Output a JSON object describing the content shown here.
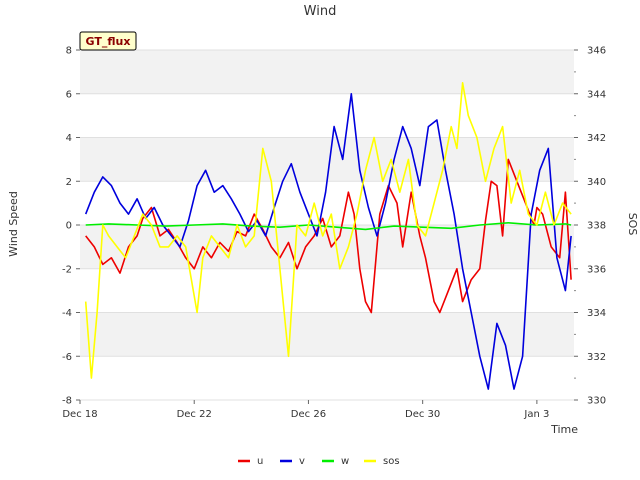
{
  "chart_data": {
    "type": "line",
    "title": "Wind",
    "badge": "GT_flux",
    "xlabel": "Time",
    "ylabel": "Wind Speed",
    "y2label": "SOS",
    "x_range": [
      0,
      17.3
    ],
    "x_ticks": [
      {
        "pos": 0,
        "label": "Dec 18"
      },
      {
        "pos": 4,
        "label": "Dec 22"
      },
      {
        "pos": 8,
        "label": "Dec 26"
      },
      {
        "pos": 12,
        "label": "Dec 30"
      },
      {
        "pos": 16,
        "label": "Jan 3"
      }
    ],
    "ylim": [
      -8,
      8
    ],
    "y_ticks": [
      -8,
      -6,
      -4,
      -2,
      0,
      2,
      4,
      6,
      8
    ],
    "y2lim": [
      330,
      346
    ],
    "y2_ticks": [
      330,
      332,
      334,
      336,
      338,
      340,
      342,
      344,
      346
    ],
    "grid": "horizontal bands",
    "legend_position": "bottom-center",
    "series": [
      {
        "name": "u",
        "color": "#ee0000",
        "axis": "left",
        "x": [
          0.2,
          0.5,
          0.8,
          1.1,
          1.4,
          1.7,
          2.0,
          2.2,
          2.5,
          2.8,
          3.1,
          3.4,
          3.7,
          4.0,
          4.3,
          4.6,
          4.9,
          5.2,
          5.5,
          5.8,
          6.1,
          6.4,
          6.7,
          7.0,
          7.3,
          7.6,
          7.9,
          8.2,
          8.5,
          8.8,
          9.1,
          9.4,
          9.6,
          9.8,
          10.0,
          10.2,
          10.5,
          10.8,
          11.1,
          11.3,
          11.6,
          11.9,
          12.1,
          12.4,
          12.6,
          12.9,
          13.2,
          13.4,
          13.7,
          14.0,
          14.2,
          14.4,
          14.6,
          14.8,
          15.0,
          15.3,
          15.6,
          15.9,
          16.0,
          16.2,
          16.5,
          16.8,
          17.0,
          17.2
        ],
        "y": [
          -0.5,
          -1.0,
          -1.8,
          -1.5,
          -2.2,
          -1.0,
          -0.5,
          0.3,
          0.8,
          -0.5,
          -0.2,
          -0.8,
          -1.5,
          -2.0,
          -1.0,
          -1.5,
          -0.8,
          -1.2,
          -0.3,
          -0.5,
          0.5,
          -0.2,
          -1.0,
          -1.5,
          -0.8,
          -2.0,
          -1.0,
          -0.5,
          0.3,
          -1.0,
          -0.5,
          1.5,
          0.5,
          -2.0,
          -3.5,
          -4.0,
          0.5,
          1.8,
          1.0,
          -1.0,
          1.5,
          -0.5,
          -1.5,
          -3.5,
          -4.0,
          -3.0,
          -2.0,
          -3.5,
          -2.5,
          -2.0,
          0.2,
          2.0,
          1.8,
          -0.5,
          3.0,
          2.0,
          1.0,
          0.0,
          0.8,
          0.5,
          -1.0,
          -1.5,
          1.5,
          -2.5
        ]
      },
      {
        "name": "v",
        "color": "#0000dd",
        "axis": "left",
        "x": [
          0.2,
          0.5,
          0.8,
          1.1,
          1.4,
          1.7,
          2.0,
          2.3,
          2.6,
          2.9,
          3.2,
          3.5,
          3.8,
          4.1,
          4.4,
          4.7,
          5.0,
          5.3,
          5.6,
          5.9,
          6.2,
          6.5,
          6.8,
          7.1,
          7.4,
          7.7,
          8.0,
          8.3,
          8.6,
          8.9,
          9.2,
          9.5,
          9.8,
          10.1,
          10.4,
          10.7,
          11.0,
          11.3,
          11.6,
          11.9,
          12.2,
          12.5,
          12.8,
          13.1,
          13.4,
          13.7,
          14.0,
          14.3,
          14.6,
          14.9,
          15.2,
          15.5,
          15.8,
          16.1,
          16.4,
          16.7,
          17.0,
          17.2
        ],
        "y": [
          0.5,
          1.5,
          2.2,
          1.8,
          1.0,
          0.5,
          1.2,
          0.3,
          0.8,
          0.0,
          -0.5,
          -1.0,
          0.2,
          1.8,
          2.5,
          1.5,
          1.8,
          1.2,
          0.5,
          -0.3,
          0.2,
          -0.5,
          0.8,
          2.0,
          2.8,
          1.5,
          0.5,
          -0.5,
          1.5,
          4.5,
          3.0,
          6.0,
          2.5,
          0.8,
          -0.5,
          1.0,
          3.0,
          4.5,
          3.5,
          1.8,
          4.5,
          4.8,
          2.5,
          0.5,
          -2.0,
          -4.0,
          -6.0,
          -7.5,
          -4.5,
          -5.5,
          -7.5,
          -6.0,
          0.5,
          2.5,
          3.5,
          -1.5,
          -3.0,
          -0.5
        ]
      },
      {
        "name": "w",
        "color": "#00ee00",
        "axis": "left",
        "x": [
          0.2,
          1.0,
          2.0,
          3.0,
          4.0,
          5.0,
          6.0,
          7.0,
          8.0,
          9.0,
          10.0,
          11.0,
          12.0,
          13.0,
          14.0,
          15.0,
          16.0,
          17.0,
          17.2
        ],
        "y": [
          0.0,
          0.05,
          0.0,
          -0.05,
          0.0,
          0.05,
          -0.05,
          -0.1,
          0.0,
          -0.1,
          -0.2,
          -0.05,
          -0.1,
          -0.15,
          0.0,
          0.1,
          0.0,
          0.05,
          0.0
        ]
      },
      {
        "name": "sos",
        "color": "#ffff00",
        "axis": "right",
        "x": [
          0.2,
          0.4,
          0.6,
          0.8,
          1.0,
          1.3,
          1.6,
          1.9,
          2.2,
          2.5,
          2.8,
          3.1,
          3.4,
          3.7,
          3.9,
          4.1,
          4.3,
          4.6,
          4.9,
          5.2,
          5.5,
          5.8,
          6.1,
          6.4,
          6.7,
          7.0,
          7.3,
          7.6,
          7.9,
          8.2,
          8.5,
          8.8,
          9.1,
          9.4,
          9.7,
          10.0,
          10.3,
          10.6,
          10.9,
          11.2,
          11.5,
          11.8,
          12.1,
          12.4,
          12.7,
          13.0,
          13.2,
          13.4,
          13.6,
          13.9,
          14.2,
          14.5,
          14.8,
          15.1,
          15.4,
          15.7,
          16.0,
          16.3,
          16.6,
          16.9,
          17.2
        ],
        "y": [
          334.5,
          331.0,
          334.0,
          338.0,
          337.5,
          337.0,
          336.5,
          337.5,
          338.5,
          338.0,
          337.0,
          337.0,
          337.5,
          337.0,
          335.5,
          334.0,
          336.5,
          337.5,
          337.0,
          336.5,
          338.0,
          337.0,
          337.5,
          341.5,
          340.0,
          336.0,
          332.0,
          338.0,
          337.5,
          339.0,
          337.5,
          338.5,
          336.0,
          337.0,
          338.5,
          340.5,
          342.0,
          340.0,
          341.0,
          339.5,
          341.0,
          338.0,
          337.5,
          339.0,
          340.5,
          342.5,
          341.5,
          344.5,
          343.0,
          342.0,
          340.0,
          341.5,
          342.5,
          339.0,
          340.5,
          338.5,
          338.0,
          339.5,
          338.0,
          339.0,
          338.5
        ]
      }
    ]
  }
}
